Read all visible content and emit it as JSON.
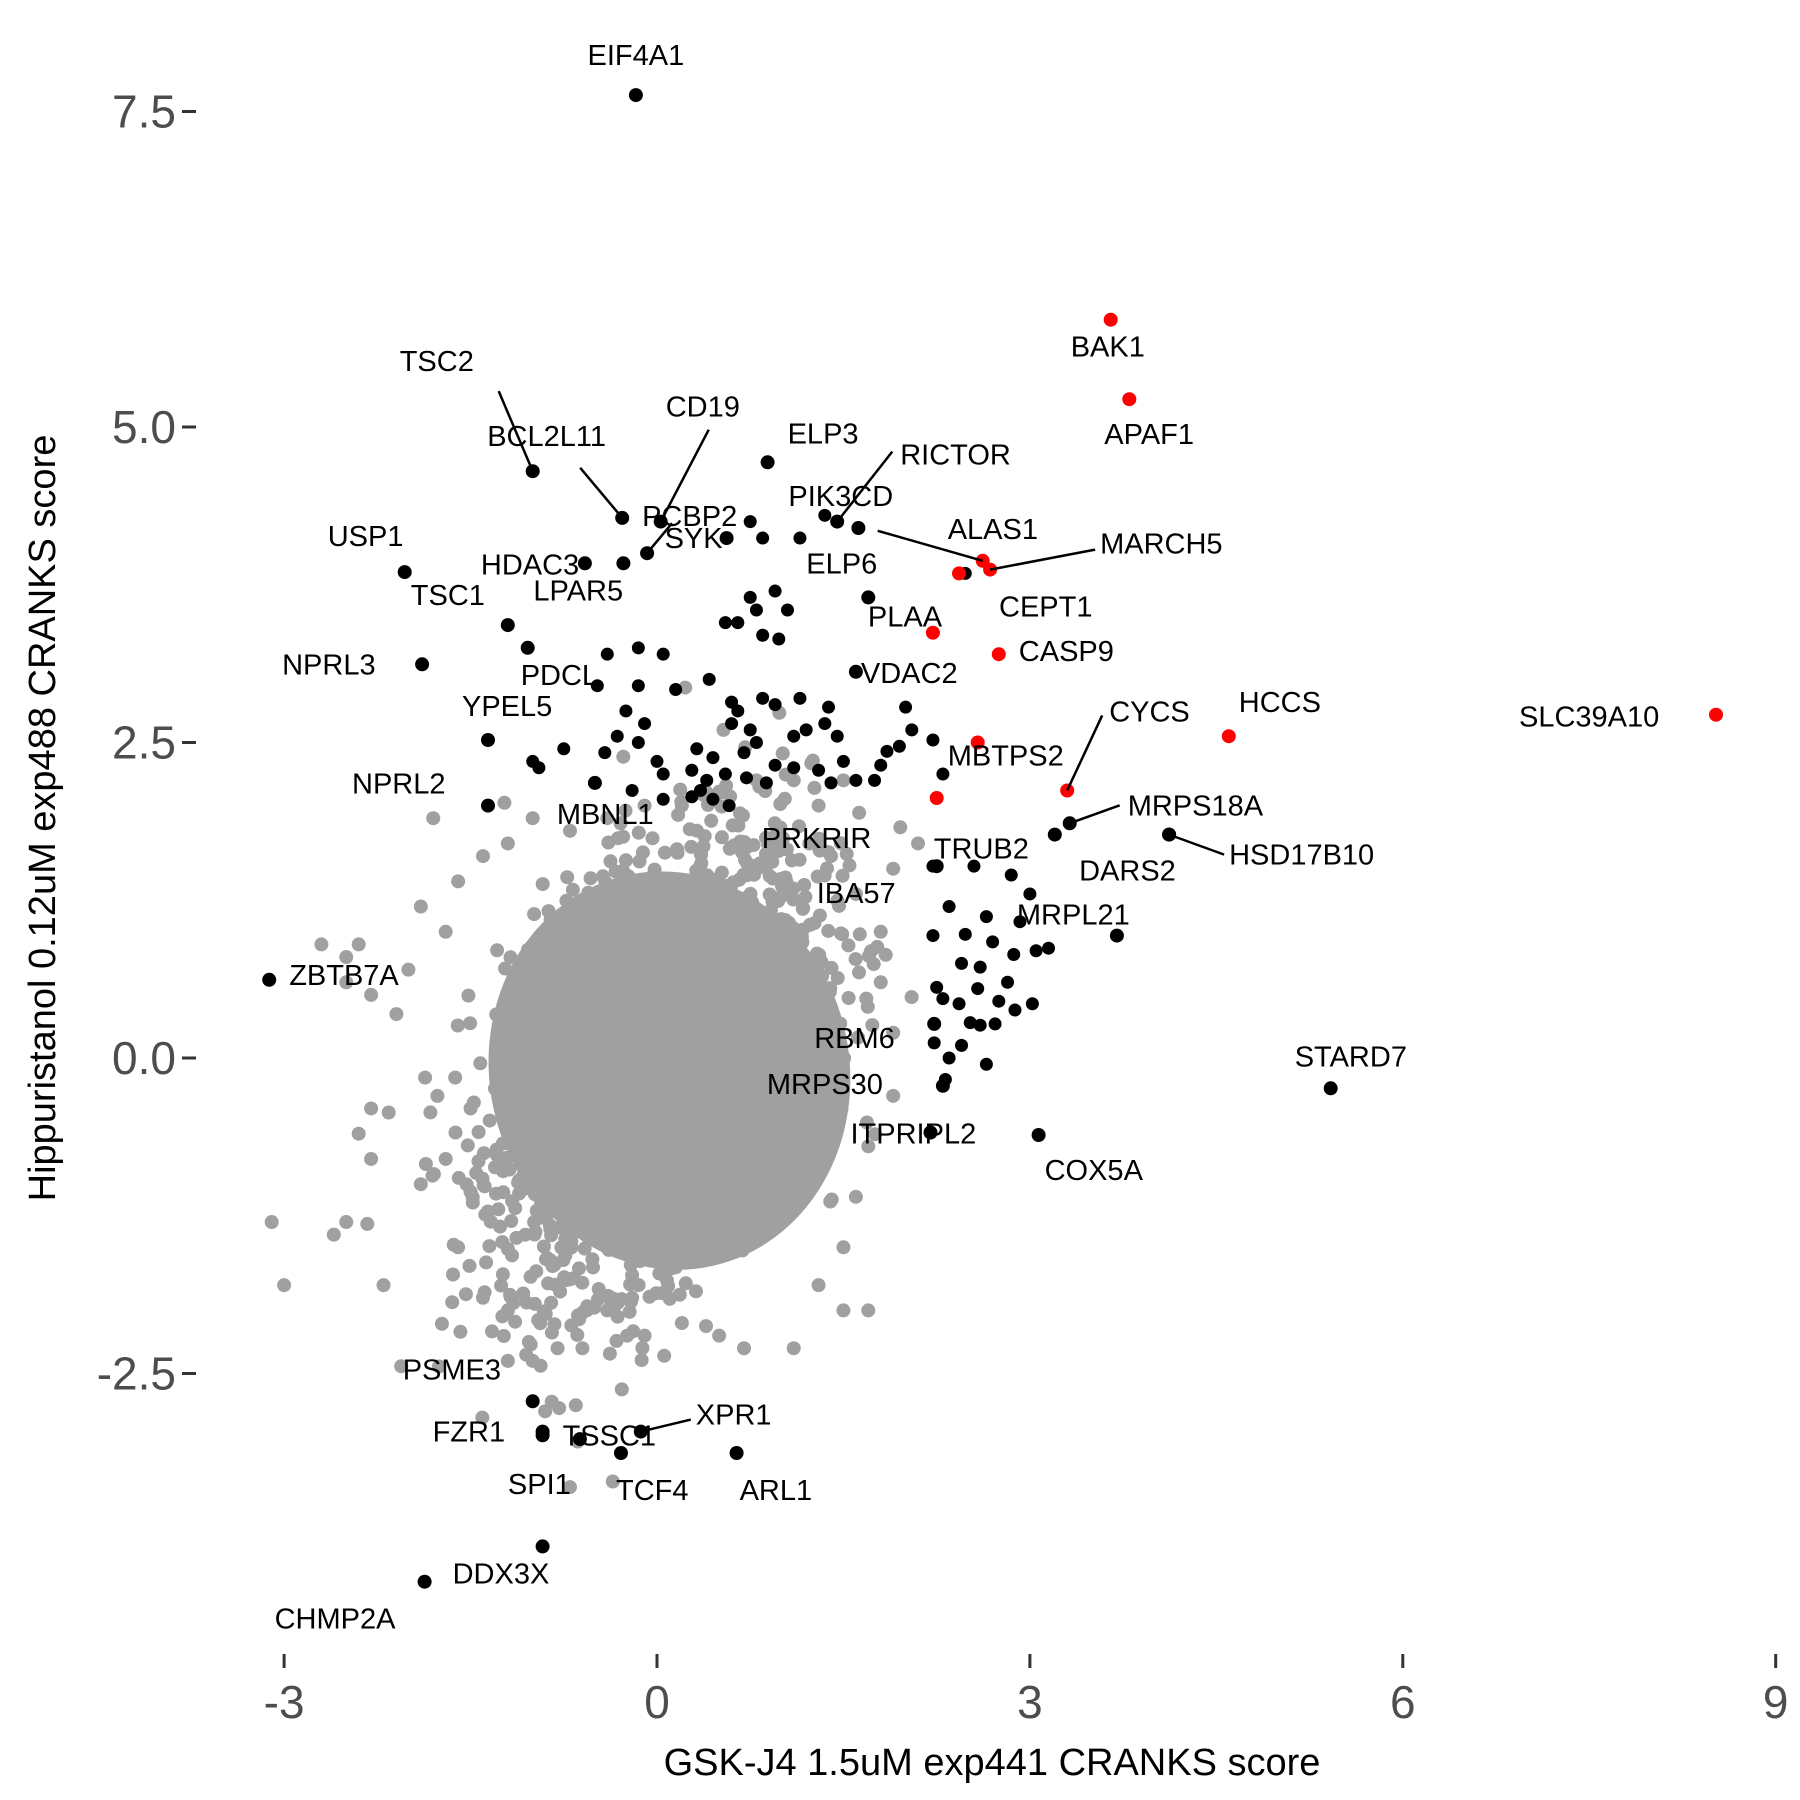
{
  "chart_data": {
    "type": "scatter",
    "xlabel": "GSK-J4 1.5uM exp441 CRANKS score",
    "ylabel": "Hippuristanol 0.12uM exp488 CRANKS score",
    "xlim": [
      -3.0,
      9.0
    ],
    "ylim": [
      -4.6,
      7.8
    ],
    "x_ticks": [
      -3,
      0,
      3,
      6,
      9
    ],
    "x_tick_labels": [
      "-3",
      "0",
      "3",
      "6",
      "9"
    ],
    "y_ticks": [
      -2.5,
      0.0,
      2.5,
      5.0,
      7.5
    ],
    "y_tick_labels": [
      "-2.5",
      "0.0",
      "2.5",
      "5.0",
      "7.5"
    ],
    "grid": false,
    "legend": "none",
    "colors": {
      "background_points": "#a0a0a0",
      "highlight": "#000000",
      "red": "#ff0000"
    },
    "background_cloud": {
      "note": "thousands of grey points forming a dense cloud",
      "center": [
        0.0,
        0.0
      ],
      "points": [
        [
          -1.8,
          1.9
        ],
        [
          -3.0,
          -1.8
        ],
        [
          -3.1,
          -1.3
        ],
        [
          -2.6,
          -1.4
        ],
        [
          -2.2,
          -1.8
        ],
        [
          -2.5,
          -1.3
        ],
        [
          -2.4,
          -0.6
        ],
        [
          -2.3,
          -0.4
        ],
        [
          -2.3,
          -0.8
        ],
        [
          -2.5,
          0.8
        ],
        [
          -2.7,
          0.9
        ],
        [
          -2.5,
          0.6
        ],
        [
          -2.3,
          0.5
        ],
        [
          -2.0,
          0.7
        ],
        [
          -1.9,
          1.2
        ],
        [
          -1.7,
          1.0
        ],
        [
          -1.6,
          1.4
        ],
        [
          -1.4,
          1.6
        ],
        [
          -1.5,
          -0.4
        ],
        [
          -1.7,
          -0.8
        ],
        [
          -1.9,
          -1.0
        ],
        [
          -1.6,
          -1.5
        ],
        [
          -1.4,
          -1.9
        ],
        [
          -1.2,
          -2.0
        ],
        [
          -1.2,
          -2.4
        ],
        [
          -1.0,
          -2.4
        ],
        [
          -0.8,
          -2.3
        ],
        [
          -0.6,
          -2.3
        ],
        [
          -0.4,
          -2.0
        ],
        [
          -0.2,
          -1.9
        ],
        [
          -0.1,
          -2.2
        ],
        [
          0.2,
          -2.1
        ],
        [
          0.5,
          -2.2
        ],
        [
          0.7,
          -2.3
        ],
        [
          1.1,
          -2.3
        ],
        [
          1.5,
          -2.0
        ],
        [
          1.7,
          -2.0
        ],
        [
          1.3,
          -1.8
        ],
        [
          1.5,
          -1.5
        ],
        [
          1.6,
          -1.1
        ],
        [
          1.7,
          -0.7
        ],
        [
          1.9,
          -0.3
        ],
        [
          1.9,
          0.2
        ],
        [
          1.8,
          0.6
        ],
        [
          1.8,
          1.0
        ],
        [
          1.6,
          1.3
        ],
        [
          1.4,
          1.6
        ],
        [
          1.3,
          2.0
        ],
        [
          2.1,
          1.7
        ],
        [
          1.9,
          1.5
        ],
        [
          1.5,
          2.2
        ],
        [
          1.1,
          2.2
        ],
        [
          0.8,
          2.2
        ],
        [
          0.5,
          2.1
        ],
        [
          0.2,
          2.0
        ],
        [
          -0.1,
          2.0
        ],
        [
          -0.4,
          1.9
        ],
        [
          -0.7,
          1.8
        ],
        [
          -1.0,
          1.9
        ],
        [
          -1.2,
          1.7
        ],
        [
          -0.9,
          -2.8
        ],
        [
          -0.7,
          -3.4
        ],
        [
          -2.4,
          0.9
        ],
        [
          -0.8,
          -1.1
        ],
        [
          0.3,
          -1.3
        ],
        [
          0.9,
          -1.0
        ],
        [
          -0.6,
          1.2
        ],
        [
          0.2,
          1.3
        ],
        [
          1.0,
          1.1
        ],
        [
          -1.0,
          0.4
        ],
        [
          1.1,
          -0.2
        ],
        [
          -0.2,
          -0.6
        ]
      ]
    },
    "highlighted_points": [
      {
        "label": "EIF4A1",
        "x": -0.17,
        "y": 7.63,
        "color": "black"
      },
      {
        "label": "BAK1",
        "x": 3.65,
        "y": 5.85,
        "color": "red"
      },
      {
        "label": "APAF1",
        "x": 3.8,
        "y": 5.22,
        "color": "red"
      },
      {
        "label": "TSC2",
        "x": -1.0,
        "y": 4.65,
        "color": "black"
      },
      {
        "label": "CD19",
        "x": 0.03,
        "y": 4.25,
        "color": "black"
      },
      {
        "label": "BCL2L11",
        "x": -0.28,
        "y": 4.28,
        "color": "black"
      },
      {
        "label": "ELP3",
        "x": 0.89,
        "y": 4.72,
        "color": "black"
      },
      {
        "label": "RICTOR",
        "x": 1.45,
        "y": 4.25,
        "color": "black"
      },
      {
        "label": "PCBP2",
        "x": -0.08,
        "y": 4.0,
        "color": "black"
      },
      {
        "label": "PIK3CD",
        "x": 1.62,
        "y": 4.2,
        "color": "black"
      },
      {
        "label": "HDAC3",
        "x": -0.58,
        "y": 3.92,
        "color": "black"
      },
      {
        "label": "ALAS1",
        "x": 2.62,
        "y": 3.94,
        "color": "red"
      },
      {
        "label": "MARCH5",
        "x": 2.68,
        "y": 3.87,
        "color": "red"
      },
      {
        "label": "USP1",
        "x": -2.03,
        "y": 3.85,
        "color": "black"
      },
      {
        "label": "LPAR5",
        "x": -0.27,
        "y": 3.92,
        "color": "black"
      },
      {
        "label": "SYK",
        "x": 0.56,
        "y": 4.12,
        "color": "black"
      },
      {
        "label": "ELP6",
        "x": 1.7,
        "y": 3.65,
        "color": "black"
      },
      {
        "label": "CEPT1",
        "x": 2.43,
        "y": 3.84,
        "color": "red"
      },
      {
        "label": "TSC1",
        "x": -1.2,
        "y": 3.43,
        "color": "black"
      },
      {
        "label": "PLAA",
        "x": 2.22,
        "y": 3.37,
        "color": "red"
      },
      {
        "label": "NPRL3",
        "x": -1.89,
        "y": 3.12,
        "color": "black"
      },
      {
        "label": "PDCL",
        "x": -1.04,
        "y": 3.25,
        "color": "black"
      },
      {
        "label": "CASP9",
        "x": 2.75,
        "y": 3.2,
        "color": "red"
      },
      {
        "label": "VDAC2",
        "x": 1.6,
        "y": 3.06,
        "color": "black"
      },
      {
        "label": "YPEL5",
        "x": -1.36,
        "y": 2.52,
        "color": "black"
      },
      {
        "label": "CYCS",
        "x": 3.3,
        "y": 2.12,
        "color": "red"
      },
      {
        "label": "HCCS",
        "x": 4.6,
        "y": 2.55,
        "color": "red"
      },
      {
        "label": "SLC39A10",
        "x": 8.52,
        "y": 2.72,
        "color": "red"
      },
      {
        "label": "MBTPS2",
        "x": 2.58,
        "y": 2.5,
        "color": "red"
      },
      {
        "label": "NPRL2",
        "x": -1.36,
        "y": 2.0,
        "color": "black"
      },
      {
        "label": "MRPS18A",
        "x": 3.32,
        "y": 1.86,
        "color": "black"
      },
      {
        "label": "TRUB2",
        "x": 3.2,
        "y": 1.77,
        "color": "black"
      },
      {
        "label": "MBNL1",
        "x": -0.5,
        "y": 2.18,
        "color": "black"
      },
      {
        "label": "PRKRIR",
        "x": 2.25,
        "y": 2.06,
        "color": "red"
      },
      {
        "label": "DARS2",
        "x": 4.12,
        "y": 1.77,
        "color": "black"
      },
      {
        "label": "HSD17B10",
        "x": 4.12,
        "y": 1.77,
        "color": "black"
      },
      {
        "label": "IBA57",
        "x": 2.25,
        "y": 1.52,
        "color": "black"
      },
      {
        "label": "MRPL21",
        "x": 3.7,
        "y": 0.97,
        "color": "black"
      },
      {
        "label": "ZBTB7A",
        "x": -3.12,
        "y": 0.62,
        "color": "black"
      },
      {
        "label": "RBM6",
        "x": 2.23,
        "y": 0.27,
        "color": "black"
      },
      {
        "label": "STARD7",
        "x": 5.42,
        "y": -0.24,
        "color": "black"
      },
      {
        "label": "MRPS30",
        "x": 2.3,
        "y": -0.22,
        "color": "black"
      },
      {
        "label": "ITPRIPL2",
        "x": 2.2,
        "y": -0.59,
        "color": "black"
      },
      {
        "label": "COX5A",
        "x": 3.07,
        "y": -0.61,
        "color": "black"
      },
      {
        "label": "PSME3",
        "x": -1.0,
        "y": -2.72,
        "color": "black"
      },
      {
        "label": "TSSC1",
        "x": -0.92,
        "y": -2.99,
        "color": "black"
      },
      {
        "label": "XPR1",
        "x": -0.13,
        "y": -2.96,
        "color": "black"
      },
      {
        "label": "FZR1",
        "x": -0.92,
        "y": -2.96,
        "color": "black"
      },
      {
        "label": "SPI1",
        "x": -0.62,
        "y": -3.02,
        "color": "black"
      },
      {
        "label": "TCF4",
        "x": -0.29,
        "y": -3.13,
        "color": "black"
      },
      {
        "label": "ARL1",
        "x": 0.64,
        "y": -3.13,
        "color": "black"
      },
      {
        "label": "DDX3X",
        "x": -0.92,
        "y": -3.87,
        "color": "black"
      },
      {
        "label": "CHMP2A",
        "x": -1.87,
        "y": -4.15,
        "color": "black"
      }
    ],
    "other_black_points": [
      [
        2.22,
        1.52
      ],
      [
        2.55,
        1.52
      ],
      [
        2.85,
        1.45
      ],
      [
        3.0,
        1.3
      ],
      [
        2.35,
        1.2
      ],
      [
        2.65,
        1.12
      ],
      [
        2.92,
        1.08
      ],
      [
        2.22,
        0.97
      ],
      [
        2.48,
        0.98
      ],
      [
        2.7,
        0.92
      ],
      [
        2.87,
        0.82
      ],
      [
        3.05,
        0.85
      ],
      [
        3.15,
        0.87
      ],
      [
        2.45,
        0.75
      ],
      [
        2.6,
        0.72
      ],
      [
        2.25,
        0.56
      ],
      [
        2.58,
        0.55
      ],
      [
        2.82,
        0.6
      ],
      [
        2.3,
        0.47
      ],
      [
        2.43,
        0.43
      ],
      [
        2.75,
        0.45
      ],
      [
        2.88,
        0.38
      ],
      [
        3.02,
        0.43
      ],
      [
        2.52,
        0.28
      ],
      [
        2.6,
        0.26
      ],
      [
        2.72,
        0.27
      ],
      [
        2.45,
        0.1
      ],
      [
        2.23,
        0.12
      ],
      [
        2.35,
        0.0
      ],
      [
        2.65,
        -0.05
      ],
      [
        2.32,
        -0.17
      ],
      [
        2.0,
        2.78
      ],
      [
        2.05,
        2.6
      ],
      [
        1.85,
        2.43
      ],
      [
        1.95,
        2.47
      ],
      [
        2.3,
        2.25
      ],
      [
        1.8,
        2.32
      ],
      [
        1.6,
        2.2
      ],
      [
        1.4,
        2.18
      ],
      [
        1.3,
        2.28
      ],
      [
        1.1,
        2.3
      ],
      [
        0.95,
        2.32
      ],
      [
        0.8,
        2.5
      ],
      [
        0.95,
        2.8
      ],
      [
        1.35,
        2.65
      ],
      [
        1.38,
        2.78
      ],
      [
        1.45,
        2.55
      ],
      [
        1.2,
        2.6
      ],
      [
        1.1,
        2.55
      ],
      [
        0.75,
        2.6
      ],
      [
        0.6,
        2.65
      ],
      [
        0.65,
        2.75
      ],
      [
        0.7,
        2.42
      ],
      [
        0.45,
        2.38
      ],
      [
        0.55,
        2.25
      ],
      [
        0.4,
        2.2
      ],
      [
        0.28,
        2.28
      ],
      [
        0.32,
        2.45
      ],
      [
        0.35,
        2.12
      ],
      [
        0.45,
        2.05
      ],
      [
        0.58,
        2.0
      ],
      [
        0.72,
        2.22
      ],
      [
        0.88,
        2.18
      ],
      [
        0.05,
        2.25
      ],
      [
        0.0,
        2.35
      ],
      [
        -0.15,
        2.5
      ],
      [
        -0.32,
        2.55
      ],
      [
        -0.42,
        2.42
      ],
      [
        -0.75,
        2.45
      ],
      [
        -0.95,
        2.3
      ],
      [
        -1.0,
        2.35
      ],
      [
        -0.2,
        2.12
      ],
      [
        0.05,
        2.05
      ],
      [
        0.28,
        2.07
      ],
      [
        0.55,
        3.45
      ],
      [
        0.75,
        3.65
      ],
      [
        0.8,
        3.55
      ],
      [
        1.05,
        3.55
      ],
      [
        0.95,
        3.7
      ],
      [
        0.65,
        3.45
      ],
      [
        0.85,
        3.35
      ],
      [
        0.98,
        3.32
      ],
      [
        0.42,
        3.0
      ],
      [
        0.15,
        2.92
      ],
      [
        -0.15,
        2.95
      ],
      [
        -0.25,
        2.75
      ],
      [
        -0.1,
        2.65
      ],
      [
        -0.4,
        3.2
      ],
      [
        -0.48,
        2.95
      ],
      [
        0.05,
        3.2
      ],
      [
        -0.15,
        3.25
      ],
      [
        0.85,
        4.12
      ],
      [
        1.15,
        4.12
      ],
      [
        1.35,
        4.3
      ],
      [
        0.6,
        2.82
      ],
      [
        0.85,
        2.85
      ],
      [
        1.15,
        2.85
      ],
      [
        0.75,
        4.25
      ],
      [
        2.22,
        2.52
      ],
      [
        1.5,
        2.35
      ],
      [
        1.75,
        2.2
      ],
      [
        2.48,
        3.84
      ]
    ]
  }
}
